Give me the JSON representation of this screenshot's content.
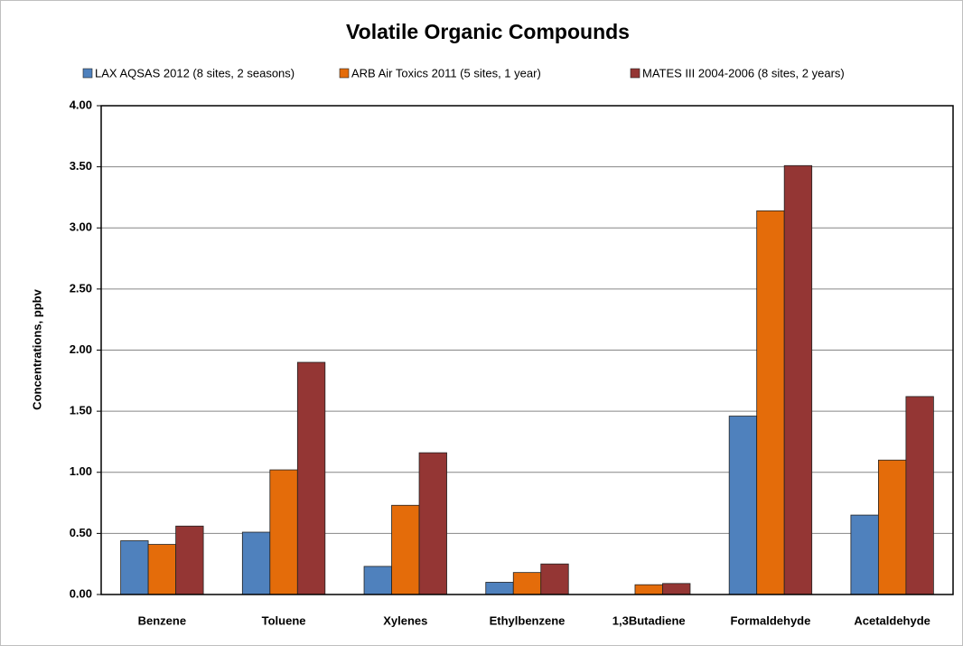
{
  "chart_data": {
    "type": "bar",
    "title": "Volatile Organic Compounds",
    "y_label": "Concentrations, ppbv",
    "categories": [
      "Benzene",
      "Toluene",
      "Xylenes",
      "Ethylbenzene",
      "1,3Butadiene",
      "Formaldehyde",
      "Acetaldehyde"
    ],
    "series": [
      {
        "name": "LAX AQSAS 2012 (8 sites, 2 seasons)",
        "color": "#4f81bd",
        "values": [
          0.44,
          0.51,
          0.23,
          0.1,
          null,
          1.46,
          0.65
        ]
      },
      {
        "name": "ARB Air Toxics 2011 (5 sites, 1 year)",
        "color": "#e46c0a",
        "values": [
          0.41,
          1.02,
          0.73,
          0.18,
          0.08,
          3.14,
          1.1
        ]
      },
      {
        "name": "MATES III 2004-2006 (8 sites, 2 years)",
        "color": "#943634",
        "values": [
          0.56,
          1.9,
          1.16,
          0.25,
          0.09,
          3.51,
          1.62
        ]
      }
    ],
    "ylim": [
      0,
      4
    ],
    "yticks": [
      {
        "value": 0,
        "label": "0.00"
      },
      {
        "value": 0.5,
        "label": "0.50"
      },
      {
        "value": 1,
        "label": "1.00"
      },
      {
        "value": 1.5,
        "label": "1.50"
      },
      {
        "value": 2,
        "label": "2.00"
      },
      {
        "value": 2.5,
        "label": "2.50"
      },
      {
        "value": 3,
        "label": "3.00"
      },
      {
        "value": 3.5,
        "label": "3.50"
      },
      {
        "value": 4,
        "label": "4.00"
      }
    ],
    "grid": true,
    "legend": "top"
  }
}
